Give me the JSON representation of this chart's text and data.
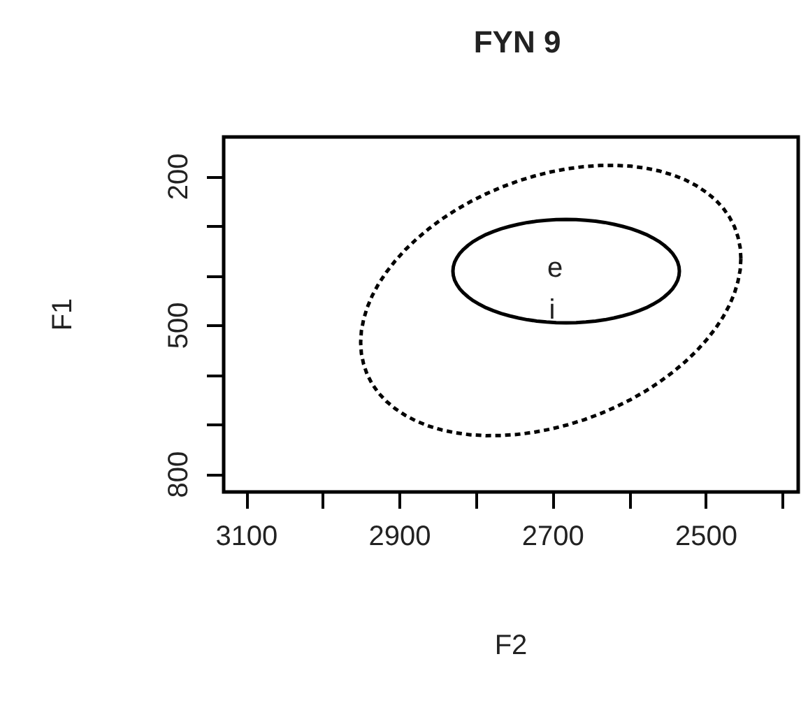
{
  "chart_data": {
    "type": "line",
    "title": "FYN 9",
    "xlabel": "F2",
    "ylabel": "F1",
    "xlim": [
      3130,
      2380
    ],
    "ylim": [
      835,
      120
    ],
    "xticks": [
      3100,
      {
        "value": 3000,
        "label": null
      },
      2900,
      {
        "value": 2800,
        "label": null
      },
      2700,
      {
        "value": 2600,
        "label": null
      },
      2500,
      {
        "value": 2400,
        "label": null
      }
    ],
    "yticks": [
      200,
      {
        "value": 300,
        "label": null
      },
      {
        "value": 400,
        "label": null
      },
      500,
      {
        "value": 600,
        "label": null
      },
      {
        "value": 700,
        "label": null
      },
      800
    ],
    "grid": false,
    "annotations": [
      "e",
      "i"
    ]
  }
}
